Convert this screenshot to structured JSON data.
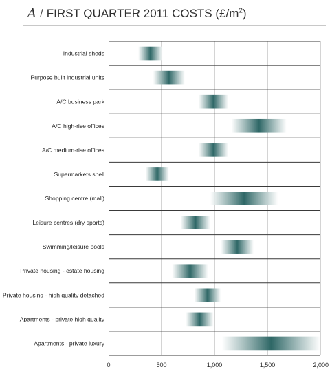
{
  "title": {
    "letter": "A",
    "slash": "/",
    "text_main": "FIRST QUARTER 2011 COSTS (£/m",
    "text_sup": "2",
    "text_end": ")"
  },
  "chart_data": {
    "type": "bar",
    "title": "FIRST QUARTER 2011 COSTS (£/m²)",
    "xlim": [
      0,
      2000
    ],
    "x_ticks": [
      "0",
      "500",
      "1,000",
      "1,500",
      "2,000"
    ],
    "x_tick_values": [
      0,
      500,
      1000,
      1500,
      2000
    ],
    "grid": "vertical",
    "colors": {
      "bar_dark": "#2e6766",
      "bar_light": "#ffffff",
      "row_rule": "#3a3a3a",
      "grid": "#aaaaaa"
    },
    "categories": [
      "Industrial sheds",
      "Purpose built industrial units",
      "A/C business park",
      "A/C high-rise offices",
      "A/C medium-rise offices",
      "Supermarkets shell",
      "Shopping centre (mall)",
      "Leisure centres (dry sports)",
      "Swimming/leisure pools",
      "Private housing - estate housing",
      "Private housing - high quality detached",
      "Apartments - private high quality",
      "Apartments - private luxury"
    ],
    "ranges": [
      {
        "low": 280,
        "high": 510
      },
      {
        "low": 420,
        "high": 720
      },
      {
        "low": 850,
        "high": 1130
      },
      {
        "low": 1160,
        "high": 1680
      },
      {
        "low": 850,
        "high": 1130
      },
      {
        "low": 350,
        "high": 570
      },
      {
        "low": 960,
        "high": 1600
      },
      {
        "low": 680,
        "high": 960
      },
      {
        "low": 1060,
        "high": 1370
      },
      {
        "low": 600,
        "high": 940
      },
      {
        "low": 810,
        "high": 1060
      },
      {
        "low": 730,
        "high": 990
      },
      {
        "low": 1070,
        "high": 2000
      }
    ]
  }
}
